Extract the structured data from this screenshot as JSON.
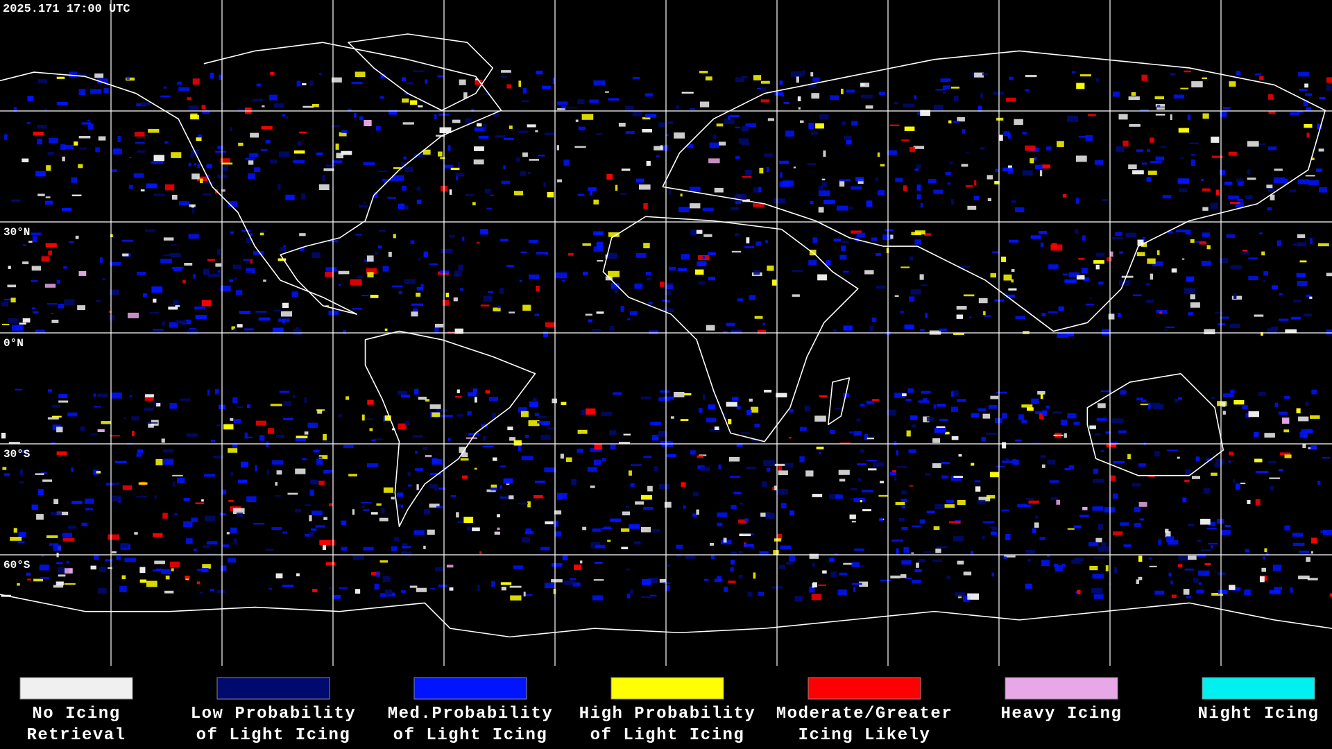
{
  "header": {
    "timestamp": "2025.171 17:00 UTC"
  },
  "map": {
    "latitude_labels": [
      "30°N",
      "0°N",
      "30°S",
      "60°S"
    ]
  },
  "legend": {
    "items": [
      {
        "label": [
          "No Icing",
          "Retrieval"
        ],
        "color": "#f0f0f0"
      },
      {
        "label": [
          "Low Probability",
          "of Light Icing"
        ],
        "color": "#000a6e"
      },
      {
        "label": [
          "Med.Probability",
          "of Light Icing"
        ],
        "color": "#0014ff"
      },
      {
        "label": [
          "High Probability",
          "of Light Icing"
        ],
        "color": "#ffff00"
      },
      {
        "label": [
          "Moderate/Greater",
          "Icing Likely"
        ],
        "color": "#ff0000"
      },
      {
        "label": [
          "Heavy Icing"
        ],
        "color": "#e8a8e8"
      },
      {
        "label": [
          "Night Icing"
        ],
        "color": "#00f0f0"
      }
    ]
  }
}
